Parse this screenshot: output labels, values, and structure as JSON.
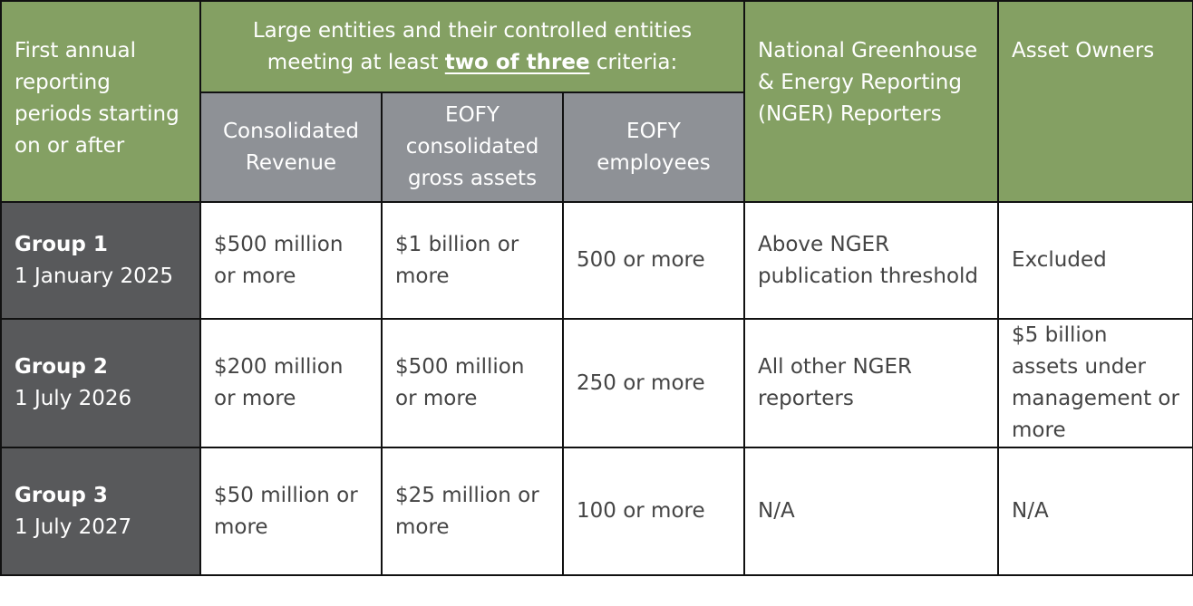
{
  "header": {
    "first_period": "First annual reporting periods starting on or after",
    "criteria_prefix": "Large entities and their controlled entities meeting at least",
    "criteria_emphasis": "two of three",
    "criteria_suffix": "criteria:",
    "nger": "National Greenhouse & Energy Reporting (NGER) Reporters",
    "asset_owners": "Asset Owners",
    "revenue": "Consolidated Revenue",
    "gross_assets": "EOFY consolidated gross assets",
    "employees": "EOFY employees"
  },
  "rows": [
    {
      "group": "Group 1",
      "date": "1 January 2025",
      "revenue": "$500 million or more",
      "assets": "$1 billion or more",
      "employees": "500 or more",
      "nger": "Above NGER publication threshold",
      "asset_owners": "Excluded"
    },
    {
      "group": "Group 2",
      "date": "1 July 2026",
      "revenue": "$200 million or more",
      "assets": "$500 million or more",
      "employees": "250 or more",
      "nger": "All other NGER reporters",
      "asset_owners": "$5 billion assets under management or more"
    },
    {
      "group": "Group 3",
      "date": "1 July 2027",
      "revenue": "$50 million or more",
      "assets": "$25 million or more",
      "employees": "100 or more",
      "nger": "N/A",
      "asset_owners": "N/A"
    }
  ],
  "colors": {
    "green_header": "#84a063",
    "grey_header": "#8e9196",
    "dark_group": "#58595b",
    "border": "#111111"
  }
}
